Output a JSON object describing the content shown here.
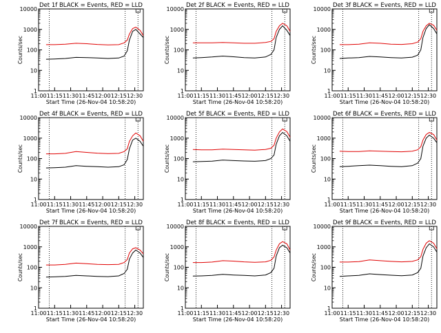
{
  "colors": {
    "events": "#000000",
    "lld": "#e00000",
    "axis": "#000000",
    "background": "#ffffff"
  },
  "panels": [
    {
      "title": "Det 1f BLACK = Events, RED = LLD",
      "ylabel": "Counts/sec",
      "xlabel": "Start Time (26-Nov-04 10:58:20)"
    },
    {
      "title": "Det 2f BLACK = Events, RED = LLD",
      "ylabel": "Counts/sec",
      "xlabel": "Start Time (26-Nov-04 10:58:20)"
    },
    {
      "title": "Det 3f BLACK = Events, RED = LLD",
      "ylabel": "Counts/sec",
      "xlabel": "Start Time (26-Nov-04 10:58:20)"
    },
    {
      "title": "Det 4f BLACK = Events, RED = LLD",
      "ylabel": "Counts/sec",
      "xlabel": "Start Time (26-Nov-04 10:58:20)"
    },
    {
      "title": "Det 5f BLACK = Events, RED = LLD",
      "ylabel": "Counts/sec",
      "xlabel": "Start Time (26-Nov-04 10:58:20)"
    },
    {
      "title": "Det 6f BLACK = Events, RED = LLD",
      "ylabel": "Counts/sec",
      "xlabel": "Start Time (26-Nov-04 10:58:20)"
    },
    {
      "title": "Det 7f BLACK = Events, RED = LLD",
      "ylabel": "Counts/sec",
      "xlabel": "Start Time (26-Nov-04 10:58:20)"
    },
    {
      "title": "Det 8f BLACK = Events, RED = LLD",
      "ylabel": "Counts/sec",
      "xlabel": "Start Time (26-Nov-04 10:58:20)"
    },
    {
      "title": "Det 9f BLACK = Events, RED = LLD",
      "ylabel": "Counts/sec",
      "xlabel": "Start Time (26-Nov-04 10:58:20)"
    }
  ],
  "chart_data": {
    "type": "line",
    "panel_count": 9,
    "layout": "3x3 grid",
    "x_tick_labels": [
      "11:00",
      "11:15",
      "11:30",
      "11:45",
      "12:00",
      "12:15",
      "12:30"
    ],
    "y_tick_labels": [
      "1",
      "10",
      "100",
      "1000",
      "10000"
    ],
    "x_tick_values": [
      "11:00",
      "11:15",
      "11:30",
      "11:45",
      "12:00",
      "12:15",
      "12:30"
    ],
    "xlim": [
      "11:00",
      "12:38"
    ],
    "ylim": [
      1,
      10000
    ],
    "yscale": "log",
    "vertical_dotted_lines": [
      "11:10",
      "12:21",
      "12:33"
    ],
    "time_points": [
      "11:07",
      "11:15",
      "11:25",
      "11:35",
      "11:45",
      "11:55",
      "12:05",
      "12:15",
      "12:20",
      "12:23",
      "12:25",
      "12:28",
      "12:31",
      "12:35",
      "12:38"
    ],
    "series_by_panel": [
      {
        "events": [
          35,
          36,
          38,
          43,
          42,
          40,
          38,
          40,
          50,
          90,
          300,
          800,
          1000,
          600,
          400
        ],
        "lld": [
          180,
          180,
          190,
          210,
          200,
          185,
          175,
          180,
          220,
          300,
          600,
          1100,
          1300,
          900,
          500
        ]
      },
      {
        "events": [
          40,
          42,
          45,
          50,
          46,
          42,
          40,
          45,
          60,
          100,
          400,
          1000,
          1500,
          900,
          500
        ],
        "lld": [
          220,
          220,
          220,
          230,
          220,
          210,
          210,
          230,
          260,
          350,
          800,
          1500,
          2000,
          1500,
          800
        ]
      },
      {
        "events": [
          38,
          40,
          42,
          48,
          45,
          42,
          40,
          44,
          55,
          100,
          400,
          1100,
          1700,
          1100,
          600
        ],
        "lld": [
          180,
          180,
          190,
          220,
          210,
          190,
          185,
          200,
          240,
          350,
          800,
          1500,
          2000,
          1600,
          900
        ]
      },
      {
        "events": [
          35,
          36,
          38,
          45,
          42,
          40,
          38,
          40,
          50,
          90,
          300,
          800,
          1000,
          700,
          400
        ],
        "lld": [
          170,
          170,
          180,
          220,
          200,
          185,
          175,
          180,
          220,
          300,
          700,
          1300,
          1800,
          1300,
          700
        ]
      },
      {
        "events": [
          70,
          72,
          75,
          85,
          80,
          76,
          74,
          80,
          100,
          150,
          500,
          1300,
          1900,
          1300,
          700
        ],
        "lld": [
          280,
          270,
          270,
          290,
          280,
          270,
          260,
          280,
          320,
          450,
          1000,
          2000,
          2800,
          2100,
          1100
        ]
      },
      {
        "events": [
          40,
          42,
          45,
          48,
          45,
          42,
          40,
          45,
          60,
          100,
          400,
          1000,
          1400,
          1000,
          600
        ],
        "lld": [
          230,
          220,
          220,
          240,
          230,
          220,
          215,
          230,
          270,
          380,
          800,
          1500,
          1900,
          1500,
          800
        ]
      },
      {
        "events": [
          33,
          34,
          36,
          40,
          38,
          36,
          35,
          38,
          50,
          80,
          250,
          500,
          700,
          500,
          300
        ],
        "lld": [
          130,
          130,
          140,
          160,
          150,
          140,
          135,
          140,
          170,
          240,
          500,
          800,
          900,
          700,
          450
        ]
      },
      {
        "events": [
          37,
          38,
          40,
          45,
          42,
          40,
          38,
          42,
          55,
          90,
          350,
          900,
          1200,
          900,
          500
        ],
        "lld": [
          170,
          170,
          180,
          210,
          200,
          185,
          175,
          185,
          220,
          320,
          700,
          1400,
          1800,
          1400,
          700
        ]
      },
      {
        "events": [
          36,
          38,
          40,
          48,
          44,
          41,
          39,
          42,
          55,
          90,
          350,
          900,
          1400,
          1000,
          550
        ],
        "lld": [
          180,
          180,
          190,
          230,
          210,
          195,
          185,
          195,
          230,
          330,
          750,
          1500,
          2000,
          1500,
          800
        ]
      }
    ]
  }
}
